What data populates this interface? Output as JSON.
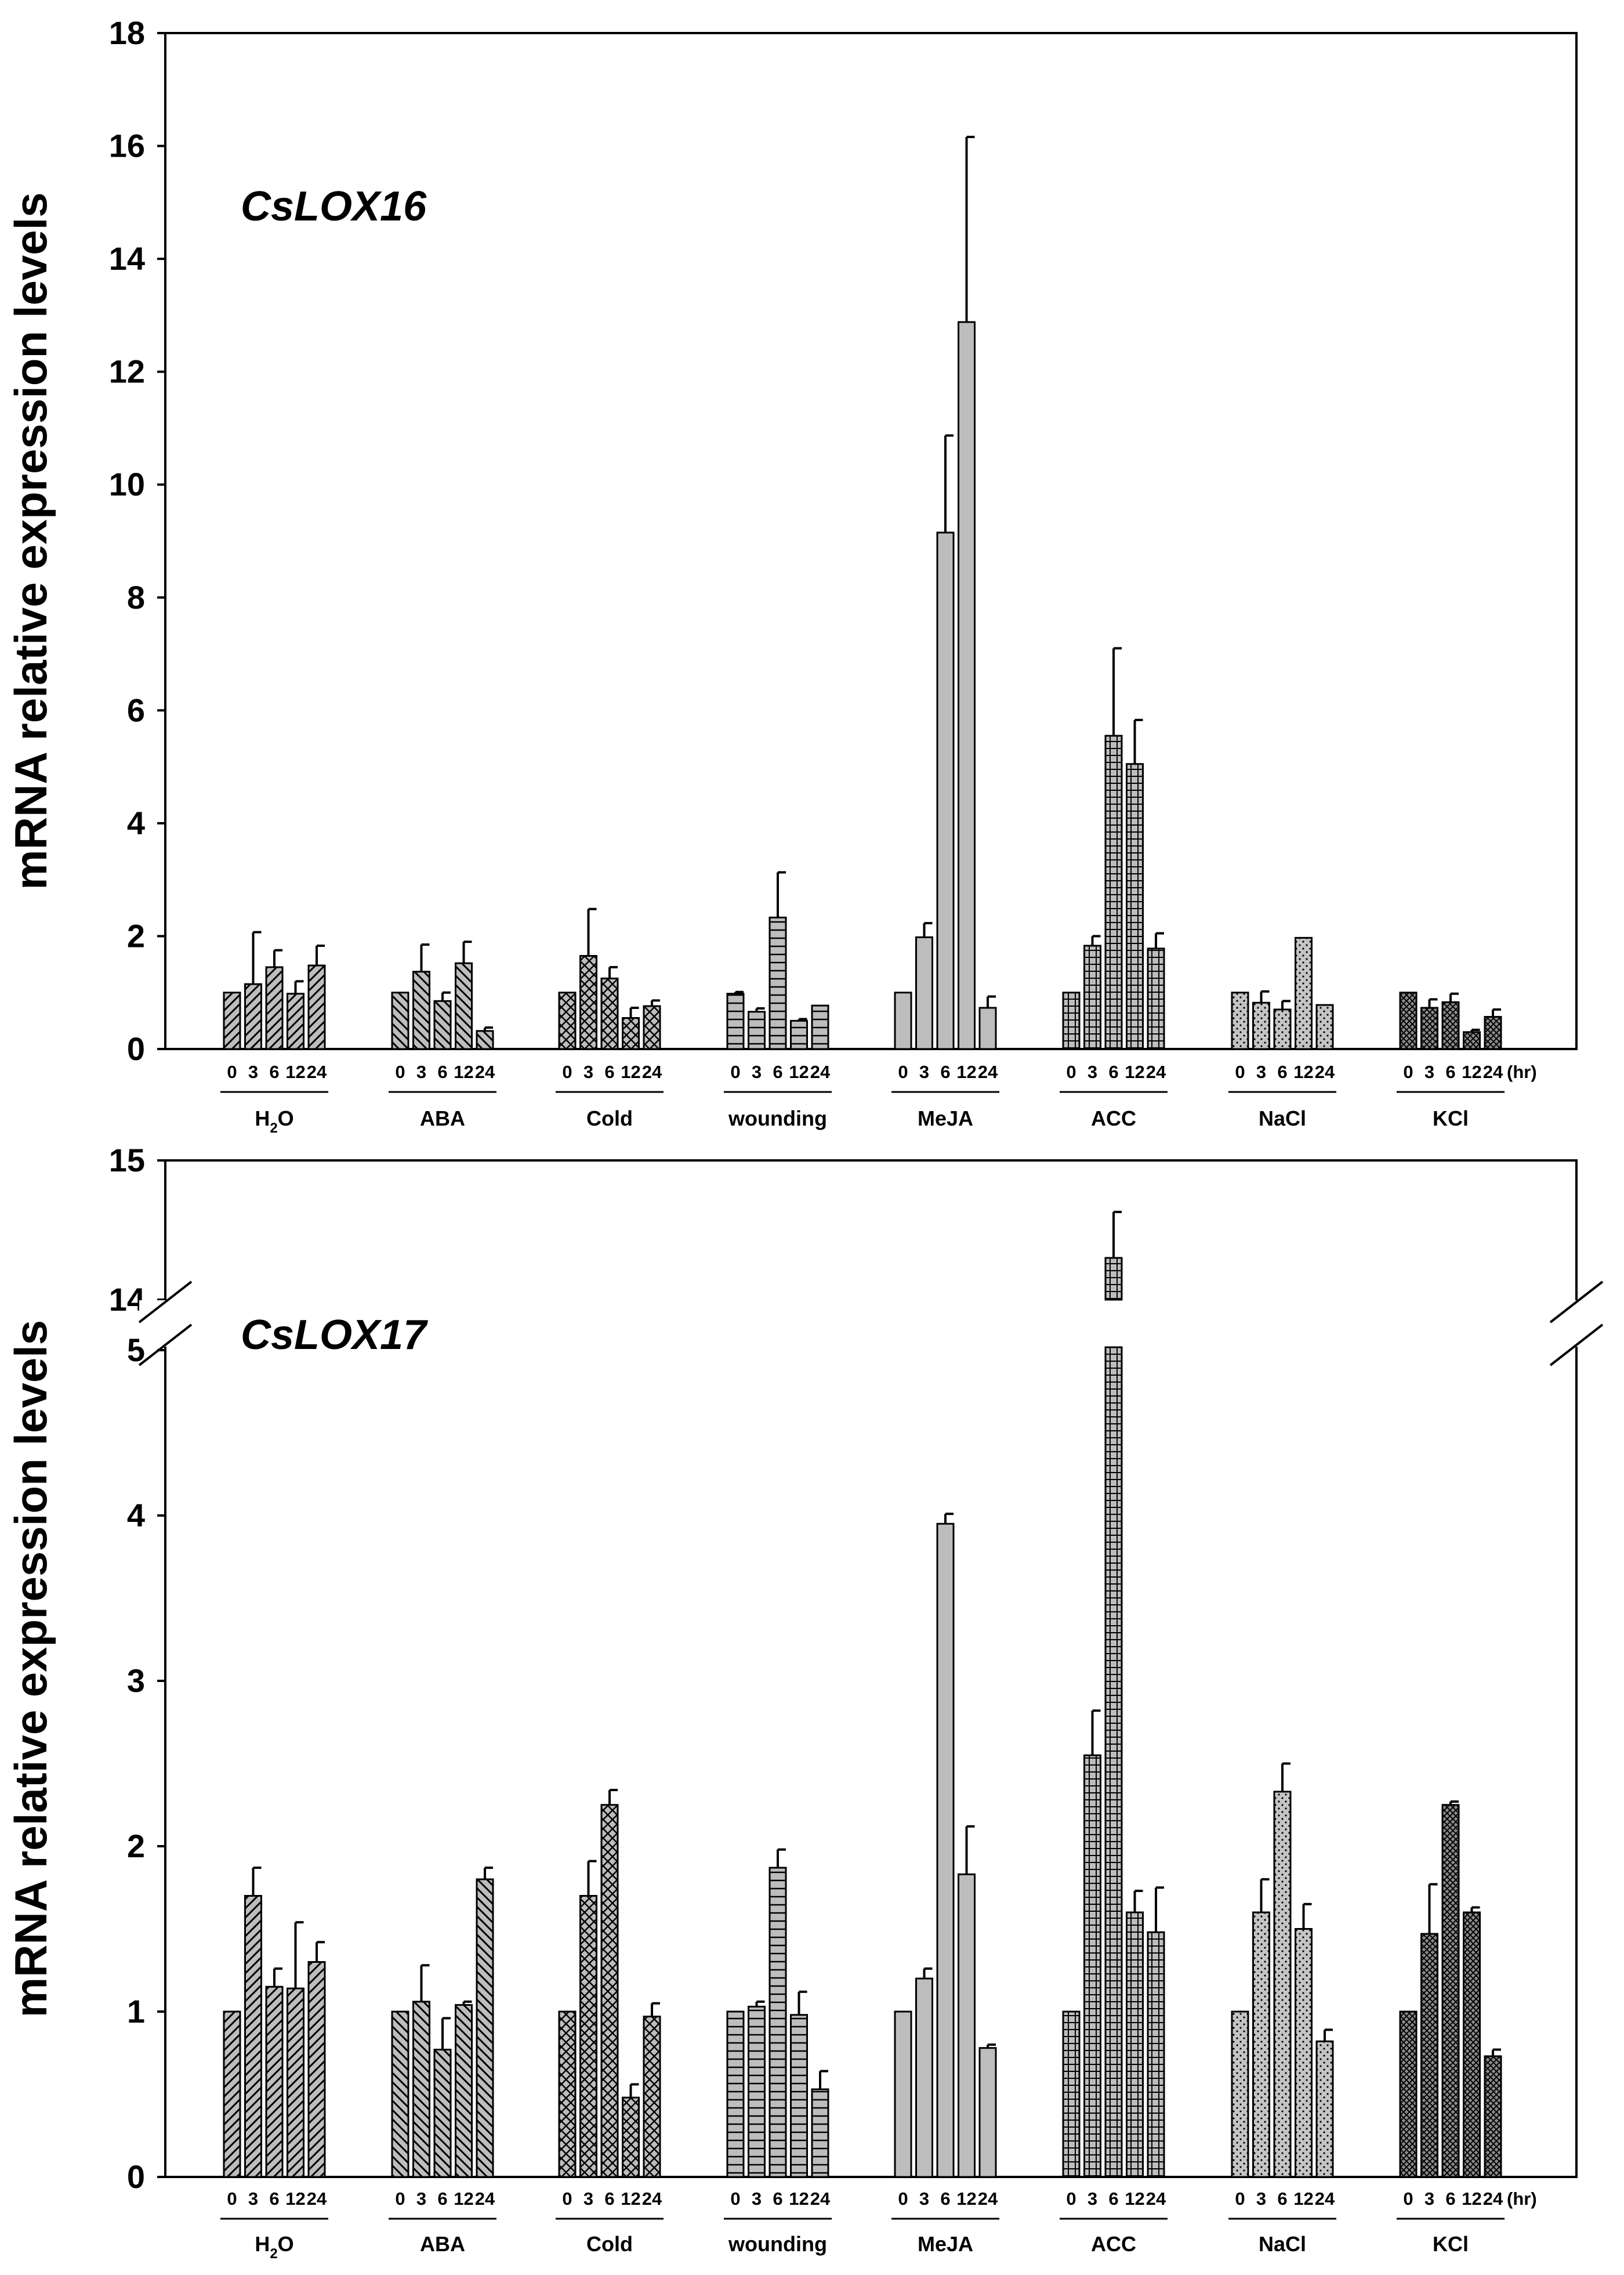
{
  "chart_data": [
    {
      "type": "bar",
      "id": "top",
      "gene_label": "CsLOX16",
      "ylabel": "mRNA relative expression levels",
      "ylim": [
        0,
        18
      ],
      "yticks": [
        0,
        2,
        4,
        6,
        8,
        10,
        12,
        14,
        16,
        18
      ],
      "time_labels": [
        "0",
        "3",
        "6",
        "12",
        "24"
      ],
      "time_unit": "(hr)",
      "fill_color": "#bdbdbd",
      "groups": [
        {
          "label_main": "H",
          "label_sub": "2",
          "label_tail": "O",
          "pattern": "diag",
          "values": [
            1.0,
            1.15,
            1.45,
            0.98,
            1.48
          ],
          "errors": [
            0,
            0.92,
            0.3,
            0.22,
            0.35
          ]
        },
        {
          "label_main": "ABA",
          "pattern": "diagrev",
          "values": [
            1.0,
            1.37,
            0.85,
            1.52,
            0.32
          ],
          "errors": [
            0,
            0.48,
            0.15,
            0.38,
            0.06
          ]
        },
        {
          "label_main": "Cold",
          "pattern": "cross",
          "values": [
            1.0,
            1.65,
            1.25,
            0.55,
            0.76
          ],
          "errors": [
            0,
            0.83,
            0.2,
            0.18,
            0.1
          ]
        },
        {
          "label_main": "wounding",
          "pattern": "horiz",
          "values": [
            0.98,
            0.66,
            2.33,
            0.5,
            0.77
          ],
          "errors": [
            0.03,
            0.06,
            0.8,
            0.03,
            0
          ]
        },
        {
          "label_main": "MeJA",
          "pattern": "solid",
          "values": [
            1.0,
            1.98,
            9.15,
            12.88,
            0.73
          ],
          "errors": [
            0,
            0.25,
            1.72,
            3.28,
            0.2
          ]
        },
        {
          "label_main": "ACC",
          "pattern": "grid",
          "values": [
            1.0,
            1.83,
            5.55,
            5.05,
            1.78
          ],
          "errors": [
            0,
            0.17,
            1.55,
            0.78,
            0.27
          ]
        },
        {
          "label_main": "NaCl",
          "pattern": "dots",
          "values": [
            1.0,
            0.82,
            0.7,
            1.97,
            0.78
          ],
          "errors": [
            0,
            0.2,
            0.15,
            0,
            0
          ]
        },
        {
          "label_main": "KCl",
          "pattern": "densecross",
          "values": [
            1.0,
            0.73,
            0.83,
            0.3,
            0.57
          ],
          "errors": [
            0,
            0.15,
            0.15,
            0.04,
            0.13
          ]
        }
      ]
    },
    {
      "type": "bar",
      "id": "bottom",
      "gene_label": "CsLOX17",
      "ylabel": "mRNA relative expression levels",
      "ylim": [
        0,
        15
      ],
      "y_break": [
        5,
        14
      ],
      "yticks": [
        0,
        1,
        2,
        3,
        4,
        5,
        14,
        15
      ],
      "time_labels": [
        "0",
        "3",
        "6",
        "12",
        "24"
      ],
      "time_unit": "(hr)",
      "fill_color": "#bdbdbd",
      "groups": [
        {
          "label_main": "H",
          "label_sub": "2",
          "label_tail": "O",
          "pattern": "diag",
          "values": [
            1.0,
            1.7,
            1.15,
            1.14,
            1.3
          ],
          "errors": [
            0,
            0.17,
            0.11,
            0.4,
            0.12
          ]
        },
        {
          "label_main": "ABA",
          "pattern": "diagrev",
          "values": [
            1.0,
            1.06,
            0.77,
            1.04,
            1.8
          ],
          "errors": [
            0,
            0.22,
            0.19,
            0.02,
            0.07
          ]
        },
        {
          "label_main": "Cold",
          "pattern": "cross",
          "values": [
            1.0,
            1.7,
            2.25,
            0.48,
            0.97
          ],
          "errors": [
            0,
            0.21,
            0.09,
            0.08,
            0.08
          ]
        },
        {
          "label_main": "wounding",
          "pattern": "horiz",
          "values": [
            1.0,
            1.03,
            1.87,
            0.98,
            0.53
          ],
          "errors": [
            0,
            0.03,
            0.11,
            0.14,
            0.11
          ]
        },
        {
          "label_main": "MeJA",
          "pattern": "solid",
          "values": [
            1.0,
            1.2,
            3.95,
            1.83,
            0.78
          ],
          "errors": [
            0,
            0.06,
            0.06,
            0.29,
            0.02
          ]
        },
        {
          "label_main": "ACC",
          "pattern": "grid",
          "values": [
            1.0,
            2.55,
            14.3,
            1.6,
            1.48
          ],
          "errors": [
            0,
            0.27,
            0.33,
            0.13,
            0.27
          ]
        },
        {
          "label_main": "NaCl",
          "pattern": "dots",
          "values": [
            1.0,
            1.6,
            2.33,
            1.5,
            0.82
          ],
          "errors": [
            0,
            0.2,
            0.17,
            0.15,
            0.07
          ]
        },
        {
          "label_main": "KCl",
          "pattern": "densecross",
          "values": [
            1.0,
            1.47,
            2.25,
            1.6,
            0.73
          ],
          "errors": [
            0,
            0.3,
            0.02,
            0.03,
            0.04
          ]
        }
      ]
    }
  ]
}
